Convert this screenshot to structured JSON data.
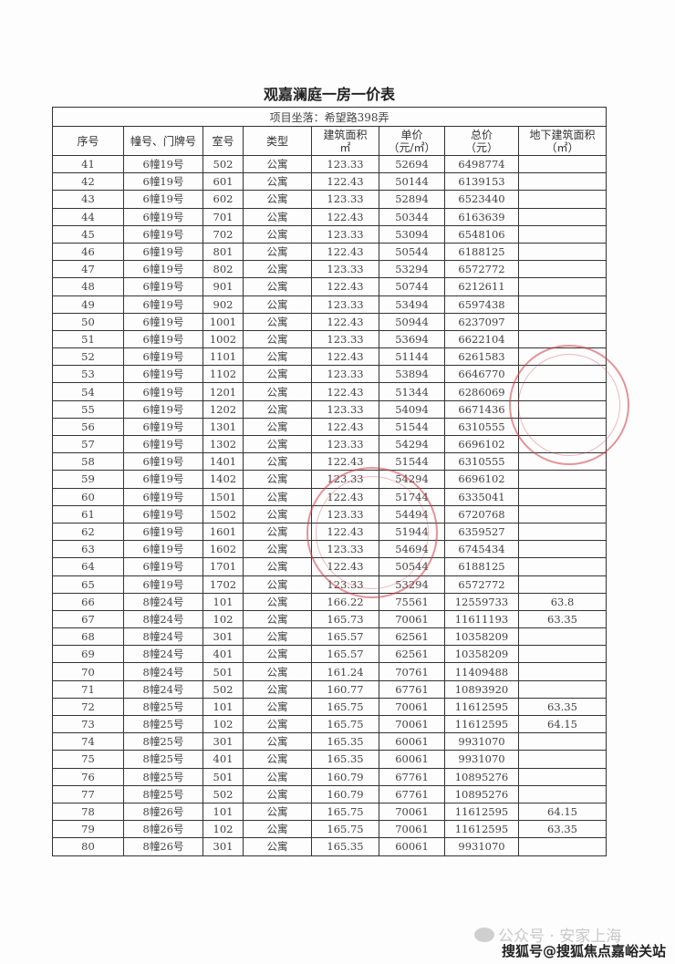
{
  "title": "观嘉澜庭一房一价表",
  "location": "项目坐落：希望路398弄",
  "headers": [
    "序号",
    "幢号、门牌号",
    "室号",
    "类型",
    "建筑面积\n㎡",
    "单价\n（元/㎡）",
    "总价\n（元）",
    "地下建筑面积\n（㎡）"
  ],
  "rows": [
    [
      "41",
      "6幢19号",
      "502",
      "公寓",
      "123.33",
      "52694",
      "6498774",
      ""
    ],
    [
      "42",
      "6幢19号",
      "601",
      "公寓",
      "122.43",
      "50144",
      "6139153",
      ""
    ],
    [
      "43",
      "6幢19号",
      "602",
      "公寓",
      "123.33",
      "52894",
      "6523440",
      ""
    ],
    [
      "44",
      "6幢19号",
      "701",
      "公寓",
      "122.43",
      "50344",
      "6163639",
      ""
    ],
    [
      "45",
      "6幢19号",
      "702",
      "公寓",
      "123.33",
      "53094",
      "6548106",
      ""
    ],
    [
      "46",
      "6幢19号",
      "801",
      "公寓",
      "122.43",
      "50544",
      "6188125",
      ""
    ],
    [
      "47",
      "6幢19号",
      "802",
      "公寓",
      "123.33",
      "53294",
      "6572772",
      ""
    ],
    [
      "48",
      "6幢19号",
      "901",
      "公寓",
      "122.43",
      "50744",
      "6212611",
      ""
    ],
    [
      "49",
      "6幢19号",
      "902",
      "公寓",
      "123.33",
      "53494",
      "6597438",
      ""
    ],
    [
      "50",
      "6幢19号",
      "1001",
      "公寓",
      "122.43",
      "50944",
      "6237097",
      ""
    ],
    [
      "51",
      "6幢19号",
      "1002",
      "公寓",
      "123.33",
      "53694",
      "6622104",
      ""
    ],
    [
      "52",
      "6幢19号",
      "1101",
      "公寓",
      "122.43",
      "51144",
      "6261583",
      ""
    ],
    [
      "53",
      "6幢19号",
      "1102",
      "公寓",
      "123.33",
      "53894",
      "6646770",
      ""
    ],
    [
      "54",
      "6幢19号",
      "1201",
      "公寓",
      "122.43",
      "51344",
      "6286069",
      ""
    ],
    [
      "55",
      "6幢19号",
      "1202",
      "公寓",
      "123.33",
      "54094",
      "6671436",
      ""
    ],
    [
      "56",
      "6幢19号",
      "1301",
      "公寓",
      "122.43",
      "51544",
      "6310555",
      ""
    ],
    [
      "57",
      "6幢19号",
      "1302",
      "公寓",
      "123.33",
      "54294",
      "6696102",
      ""
    ],
    [
      "58",
      "6幢19号",
      "1401",
      "公寓",
      "122.43",
      "51544",
      "6310555",
      ""
    ],
    [
      "59",
      "6幢19号",
      "1402",
      "公寓",
      "123.33",
      "54294",
      "6696102",
      ""
    ],
    [
      "60",
      "6幢19号",
      "1501",
      "公寓",
      "122.43",
      "51744",
      "6335041",
      ""
    ],
    [
      "61",
      "6幢19号",
      "1502",
      "公寓",
      "123.33",
      "54494",
      "6720768",
      ""
    ],
    [
      "62",
      "6幢19号",
      "1601",
      "公寓",
      "122.43",
      "51944",
      "6359527",
      ""
    ],
    [
      "63",
      "6幢19号",
      "1602",
      "公寓",
      "123.33",
      "54694",
      "6745434",
      ""
    ],
    [
      "64",
      "6幢19号",
      "1701",
      "公寓",
      "122.43",
      "50544",
      "6188125",
      ""
    ],
    [
      "65",
      "6幢19号",
      "1702",
      "公寓",
      "123.33",
      "53294",
      "6572772",
      ""
    ],
    [
      "66",
      "8幢24号",
      "101",
      "公寓",
      "166.22",
      "75561",
      "12559733",
      "63.8"
    ],
    [
      "67",
      "8幢24号",
      "102",
      "公寓",
      "165.73",
      "70061",
      "11611193",
      "63.35"
    ],
    [
      "68",
      "8幢24号",
      "301",
      "公寓",
      "165.57",
      "62561",
      "10358209",
      ""
    ],
    [
      "69",
      "8幢24号",
      "401",
      "公寓",
      "165.57",
      "62561",
      "10358209",
      ""
    ],
    [
      "70",
      "8幢24号",
      "501",
      "公寓",
      "161.24",
      "70761",
      "11409488",
      ""
    ],
    [
      "71",
      "8幢24号",
      "502",
      "公寓",
      "160.77",
      "67761",
      "10893920",
      ""
    ],
    [
      "72",
      "8幢25号",
      "101",
      "公寓",
      "165.75",
      "70061",
      "11612595",
      "63.35"
    ],
    [
      "73",
      "8幢25号",
      "102",
      "公寓",
      "165.75",
      "70061",
      "11612595",
      "64.15"
    ],
    [
      "74",
      "8幢25号",
      "301",
      "公寓",
      "165.35",
      "60061",
      "9931070",
      ""
    ],
    [
      "75",
      "8幢25号",
      "401",
      "公寓",
      "165.35",
      "60061",
      "9931070",
      ""
    ],
    [
      "76",
      "8幢25号",
      "501",
      "公寓",
      "160.79",
      "67761",
      "10895276",
      ""
    ],
    [
      "77",
      "8幢25号",
      "502",
      "公寓",
      "160.79",
      "67761",
      "10895276",
      ""
    ],
    [
      "78",
      "8幢26号",
      "101",
      "公寓",
      "165.75",
      "70061",
      "11612595",
      "64.15"
    ],
    [
      "79",
      "8幢26号",
      "102",
      "公寓",
      "165.75",
      "70061",
      "11612595",
      "63.35"
    ],
    [
      "80",
      "8幢26号",
      "301",
      "公寓",
      "165.35",
      "60061",
      "9931070",
      ""
    ]
  ],
  "stamp_color": "#d23c46",
  "watermark": {
    "channel": "公众号 · 安家上海",
    "source": "搜狐号@搜狐焦点嘉峪关站",
    "icon": "wechat-icon"
  }
}
